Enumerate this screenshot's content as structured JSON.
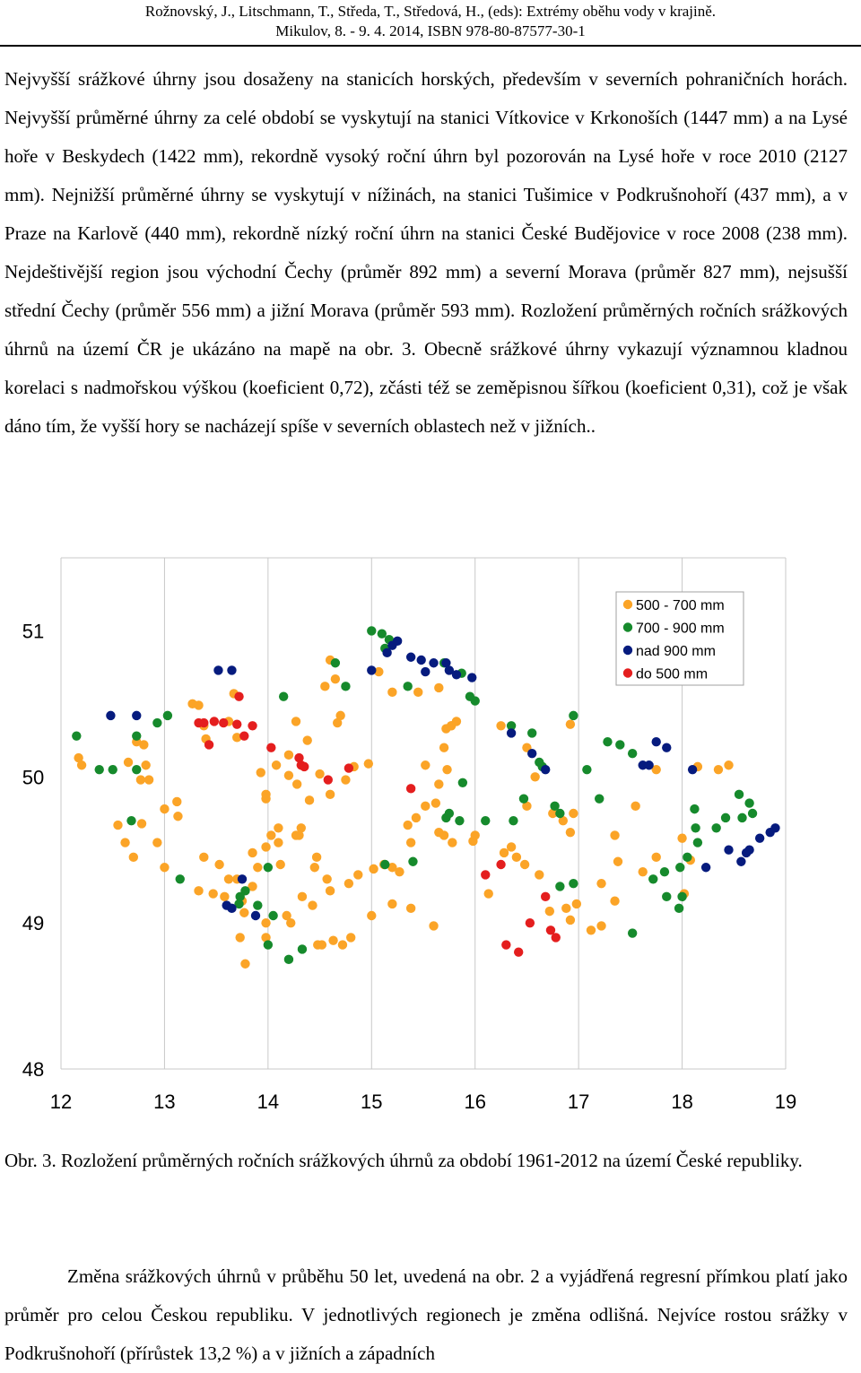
{
  "header": {
    "line1": "Rožnovský, J., Litschmann, T., Středa, T., Středová, H., (eds): Extrémy oběhu vody v krajině.",
    "line2": "Mikulov, 8. - 9. 4. 2014, ISBN 978-80-87577-30-1"
  },
  "para1": "Nejvyšší srážkové úhrny jsou dosaženy na stanicích horských, především v severních pohraničních horách. Nejvyšší průměrné úhrny za celé období se vyskytují na stanici Vítkovice v Krkonoších (1447 mm) a na Lysé hoře v Beskydech (1422 mm), rekordně vysoký roční úhrn byl pozorován na Lysé hoře v roce 2010 (2127 mm). Nejnižší průměrné úhrny se vyskytují v nížinách, na stanici Tušimice v Podkrušnohoří (437 mm), a v Praze na Karlově (440 mm), rekordně nízký roční úhrn na stanici České Budějovice v roce 2008 (238 mm). Nejdeštivější region jsou východní Čechy (průměr 892 mm) a severní Morava (průměr 827 mm), nejsušší střední Čechy (průměr 556 mm) a jižní Morava (průměr 593 mm). Rozložení průměrných ročních srážkových úhrnů na území ČR je ukázáno na mapě na obr. 3. Obecně srážkové úhrny vykazují významnou kladnou korelaci s nadmořskou výškou (koeficient 0,72), zčásti též se zeměpisnou šířkou (koeficient 0,31), což je však dáno tím, že vyšší hory se nacházejí spíše v severních oblastech než v jižních..",
  "caption": "Obr. 3. Rozložení průměrných ročních srážkových úhrnů za období 1961-2012 na území České republiky.",
  "para2": "Změna srážkových úhrnů v průběhu 50 let, uvedená na obr. 2 a vyjádřená regresní přímkou platí jako průměr pro celou Českou republiku. V jednotlivých regionech je změna odlišná. Nejvíce rostou srážky v Podkrušnohoří (přírůstek 13,2 %) a v jižních a západních",
  "chart_data": {
    "type": "scatter",
    "xlim": [
      12,
      19
    ],
    "ylim": [
      48,
      51.5
    ],
    "x_ticks": [
      12,
      13,
      14,
      15,
      16,
      17,
      18,
      19
    ],
    "y_ticks": [
      48,
      49,
      50,
      51
    ],
    "grid": true,
    "legend_position": "top-right",
    "series": [
      {
        "name": "500 - 700  mm",
        "color": "#FBA427",
        "points": [
          [
            12.17,
            50.13
          ],
          [
            12.2,
            50.08
          ],
          [
            12.65,
            50.1
          ],
          [
            12.73,
            50.24
          ],
          [
            12.8,
            50.22
          ],
          [
            12.82,
            50.08
          ],
          [
            12.77,
            49.98
          ],
          [
            12.85,
            49.98
          ],
          [
            12.78,
            49.68
          ],
          [
            12.62,
            49.55
          ],
          [
            12.55,
            49.67
          ],
          [
            12.7,
            49.45
          ],
          [
            12.93,
            49.55
          ],
          [
            13.0,
            49.38
          ],
          [
            13.0,
            49.78
          ],
          [
            13.12,
            49.83
          ],
          [
            13.13,
            49.73
          ],
          [
            13.27,
            50.5
          ],
          [
            13.33,
            50.49
          ],
          [
            13.38,
            50.35
          ],
          [
            13.4,
            50.26
          ],
          [
            13.62,
            50.38
          ],
          [
            13.67,
            50.57
          ],
          [
            13.7,
            50.27
          ],
          [
            13.93,
            50.03
          ],
          [
            13.98,
            49.88
          ],
          [
            13.98,
            49.85
          ],
          [
            14.08,
            50.08
          ],
          [
            14.2,
            50.01
          ],
          [
            14.28,
            49.95
          ],
          [
            14.27,
            49.6
          ],
          [
            14.32,
            49.65
          ],
          [
            14.3,
            49.6
          ],
          [
            14.27,
            50.38
          ],
          [
            14.38,
            50.25
          ],
          [
            14.6,
            50.8
          ],
          [
            14.55,
            50.62
          ],
          [
            14.7,
            50.42
          ],
          [
            14.67,
            50.37
          ],
          [
            14.97,
            50.09
          ],
          [
            14.83,
            50.07
          ],
          [
            14.75,
            49.98
          ],
          [
            14.6,
            49.88
          ],
          [
            14.5,
            50.02
          ],
          [
            14.4,
            49.84
          ],
          [
            14.2,
            50.15
          ],
          [
            14.1,
            49.65
          ],
          [
            14.03,
            49.6
          ],
          [
            14.1,
            49.55
          ],
          [
            13.98,
            49.52
          ],
          [
            13.85,
            49.48
          ],
          [
            13.85,
            49.25
          ],
          [
            13.7,
            49.3
          ],
          [
            13.62,
            49.3
          ],
          [
            13.53,
            49.4
          ],
          [
            13.38,
            49.45
          ],
          [
            13.33,
            49.22
          ],
          [
            13.47,
            49.2
          ],
          [
            13.58,
            49.18
          ],
          [
            13.75,
            49.15
          ],
          [
            13.98,
            49.0
          ],
          [
            13.98,
            48.9
          ],
          [
            13.77,
            49.07
          ],
          [
            13.73,
            48.9
          ],
          [
            13.78,
            48.72
          ],
          [
            13.9,
            49.38
          ],
          [
            14.12,
            49.4
          ],
          [
            14.18,
            49.05
          ],
          [
            14.22,
            49.0
          ],
          [
            14.45,
            49.38
          ],
          [
            14.47,
            49.45
          ],
          [
            14.57,
            49.3
          ],
          [
            14.33,
            49.18
          ],
          [
            14.43,
            49.12
          ],
          [
            14.48,
            48.85
          ],
          [
            14.52,
            48.85
          ],
          [
            14.63,
            48.88
          ],
          [
            14.72,
            48.85
          ],
          [
            14.8,
            48.9
          ],
          [
            14.6,
            49.22
          ],
          [
            14.78,
            49.27
          ],
          [
            14.87,
            49.33
          ],
          [
            15.02,
            49.37
          ],
          [
            15.12,
            49.4
          ],
          [
            15.2,
            49.38
          ],
          [
            15.27,
            49.35
          ],
          [
            15.38,
            49.55
          ],
          [
            15.35,
            49.67
          ],
          [
            15.43,
            49.72
          ],
          [
            15.52,
            49.8
          ],
          [
            15.62,
            49.82
          ],
          [
            15.65,
            49.95
          ],
          [
            15.52,
            50.08
          ],
          [
            15.73,
            50.05
          ],
          [
            15.7,
            50.2
          ],
          [
            15.77,
            50.35
          ],
          [
            15.77,
            50.35
          ],
          [
            15.82,
            50.38
          ],
          [
            15.65,
            50.61
          ],
          [
            15.45,
            50.58
          ],
          [
            15.07,
            50.72
          ],
          [
            15.2,
            50.58
          ],
          [
            14.65,
            50.67
          ],
          [
            15.0,
            49.05
          ],
          [
            15.2,
            49.13
          ],
          [
            15.38,
            49.1
          ],
          [
            15.6,
            48.98
          ],
          [
            15.7,
            49.6
          ],
          [
            15.65,
            49.62
          ],
          [
            15.78,
            49.55
          ],
          [
            15.98,
            49.56
          ],
          [
            16.0,
            49.6
          ],
          [
            16.13,
            49.2
          ],
          [
            16.28,
            49.48
          ],
          [
            16.35,
            49.52
          ],
          [
            16.4,
            49.45
          ],
          [
            16.48,
            49.4
          ],
          [
            16.62,
            49.33
          ],
          [
            16.72,
            49.08
          ],
          [
            16.88,
            49.1
          ],
          [
            16.92,
            49.02
          ],
          [
            16.98,
            49.13
          ],
          [
            17.12,
            48.95
          ],
          [
            17.22,
            48.98
          ],
          [
            17.22,
            49.27
          ],
          [
            17.35,
            49.15
          ],
          [
            17.38,
            49.42
          ],
          [
            17.62,
            49.35
          ],
          [
            17.75,
            49.45
          ],
          [
            18.0,
            49.58
          ],
          [
            18.08,
            49.43
          ],
          [
            18.02,
            49.2
          ],
          [
            18.15,
            50.07
          ],
          [
            18.45,
            50.08
          ],
          [
            18.35,
            50.05
          ],
          [
            17.75,
            50.05
          ],
          [
            17.55,
            49.8
          ],
          [
            17.35,
            49.6
          ],
          [
            16.85,
            49.7
          ],
          [
            16.5,
            50.2
          ],
          [
            16.5,
            49.8
          ],
          [
            16.25,
            50.35
          ],
          [
            16.58,
            50.0
          ],
          [
            16.75,
            49.75
          ],
          [
            16.92,
            49.62
          ],
          [
            16.95,
            49.75
          ],
          [
            16.92,
            50.36
          ],
          [
            15.72,
            50.33
          ]
        ]
      },
      {
        "name": "700 - 900 mm",
        "color": "#168A2C",
        "points": [
          [
            12.15,
            50.28
          ],
          [
            12.37,
            50.05
          ],
          [
            12.73,
            50.28
          ],
          [
            12.73,
            50.05
          ],
          [
            12.5,
            50.05
          ],
          [
            12.68,
            49.7
          ],
          [
            12.93,
            50.37
          ],
          [
            13.03,
            50.42
          ],
          [
            13.15,
            49.3
          ],
          [
            14.15,
            50.55
          ],
          [
            14.65,
            50.78
          ],
          [
            14.75,
            50.62
          ],
          [
            15.0,
            51.0
          ],
          [
            15.1,
            50.98
          ],
          [
            15.17,
            50.94
          ],
          [
            15.13,
            50.88
          ],
          [
            15.35,
            50.62
          ],
          [
            15.7,
            50.78
          ],
          [
            15.87,
            50.71
          ],
          [
            15.95,
            50.55
          ],
          [
            16.0,
            50.52
          ],
          [
            16.35,
            50.35
          ],
          [
            16.55,
            50.3
          ],
          [
            16.62,
            50.1
          ],
          [
            16.65,
            50.07
          ],
          [
            16.82,
            49.75
          ],
          [
            16.95,
            50.42
          ],
          [
            17.08,
            50.05
          ],
          [
            17.2,
            49.85
          ],
          [
            17.28,
            50.24
          ],
          [
            17.4,
            50.22
          ],
          [
            17.52,
            50.16
          ],
          [
            17.72,
            49.3
          ],
          [
            17.83,
            49.35
          ],
          [
            17.98,
            49.38
          ],
          [
            18.05,
            49.45
          ],
          [
            18.15,
            49.55
          ],
          [
            18.12,
            49.78
          ],
          [
            18.33,
            49.65
          ],
          [
            18.42,
            49.72
          ],
          [
            18.55,
            49.88
          ],
          [
            18.65,
            49.82
          ],
          [
            18.68,
            49.75
          ],
          [
            18.58,
            49.72
          ],
          [
            18.13,
            49.65
          ],
          [
            18.0,
            49.18
          ],
          [
            17.85,
            49.18
          ],
          [
            17.97,
            49.1
          ],
          [
            17.52,
            48.93
          ],
          [
            16.95,
            49.27
          ],
          [
            16.82,
            49.25
          ],
          [
            16.77,
            49.8
          ],
          [
            16.47,
            49.85
          ],
          [
            16.37,
            49.7
          ],
          [
            16.1,
            49.7
          ],
          [
            15.85,
            49.7
          ],
          [
            15.72,
            49.72
          ],
          [
            15.75,
            49.75
          ],
          [
            15.88,
            49.96
          ],
          [
            15.4,
            49.42
          ],
          [
            15.13,
            49.4
          ],
          [
            14.33,
            48.82
          ],
          [
            14.0,
            48.85
          ],
          [
            14.2,
            48.75
          ],
          [
            13.72,
            49.13
          ],
          [
            13.73,
            49.18
          ],
          [
            13.78,
            49.22
          ],
          [
            14.0,
            49.38
          ],
          [
            13.9,
            49.12
          ],
          [
            14.05,
            49.05
          ]
        ]
      },
      {
        "name": "nad 900 mm",
        "color": "#061B7E",
        "points": [
          [
            12.48,
            50.42
          ],
          [
            12.73,
            50.42
          ],
          [
            13.52,
            50.73
          ],
          [
            13.65,
            50.73
          ],
          [
            13.75,
            49.3
          ],
          [
            13.6,
            49.12
          ],
          [
            13.65,
            49.1
          ],
          [
            13.88,
            49.05
          ],
          [
            15.0,
            50.73
          ],
          [
            15.15,
            50.85
          ],
          [
            15.2,
            50.9
          ],
          [
            15.25,
            50.93
          ],
          [
            15.38,
            50.82
          ],
          [
            15.48,
            50.8
          ],
          [
            15.6,
            50.78
          ],
          [
            15.72,
            50.78
          ],
          [
            15.75,
            50.73
          ],
          [
            15.52,
            50.72
          ],
          [
            15.82,
            50.7
          ],
          [
            15.97,
            50.68
          ],
          [
            16.35,
            50.3
          ],
          [
            16.55,
            50.16
          ],
          [
            16.68,
            50.05
          ],
          [
            17.62,
            50.08
          ],
          [
            17.68,
            50.08
          ],
          [
            17.75,
            50.24
          ],
          [
            17.85,
            50.2
          ],
          [
            18.1,
            50.05
          ],
          [
            18.23,
            49.38
          ],
          [
            18.45,
            49.5
          ],
          [
            18.57,
            49.42
          ],
          [
            18.62,
            49.48
          ],
          [
            18.65,
            49.5
          ],
          [
            18.75,
            49.58
          ],
          [
            18.85,
            49.62
          ],
          [
            18.9,
            49.65
          ]
        ]
      },
      {
        "name": "do 500 mm",
        "color": "#E41E1E",
        "points": [
          [
            13.33,
            50.37
          ],
          [
            13.38,
            50.37
          ],
          [
            13.43,
            50.22
          ],
          [
            13.48,
            50.38
          ],
          [
            13.57,
            50.37
          ],
          [
            13.72,
            50.55
          ],
          [
            13.7,
            50.36
          ],
          [
            13.77,
            50.28
          ],
          [
            13.85,
            50.35
          ],
          [
            14.03,
            50.2
          ],
          [
            14.3,
            50.13
          ],
          [
            14.32,
            50.08
          ],
          [
            14.35,
            50.07
          ],
          [
            14.58,
            49.98
          ],
          [
            14.78,
            50.06
          ],
          [
            15.38,
            49.92
          ],
          [
            16.1,
            49.33
          ],
          [
            16.25,
            49.4
          ],
          [
            16.3,
            48.85
          ],
          [
            16.42,
            48.8
          ],
          [
            16.53,
            49.0
          ],
          [
            16.68,
            49.18
          ],
          [
            16.73,
            48.95
          ],
          [
            16.78,
            48.9
          ]
        ]
      }
    ]
  }
}
